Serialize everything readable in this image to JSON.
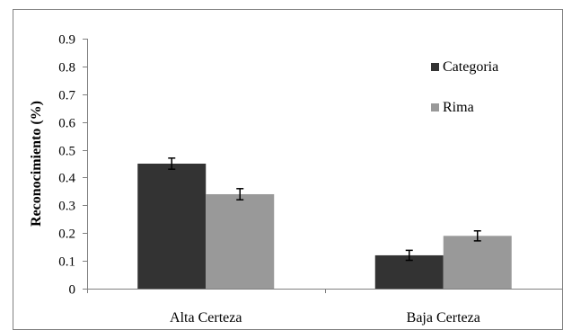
{
  "chart_data": {
    "type": "bar",
    "title": "",
    "xlabel": "",
    "ylabel": "Reconocimiento (%)",
    "ylim": [
      0,
      0.9
    ],
    "yticks": [
      0,
      0.1,
      0.2,
      0.3,
      0.4,
      0.5,
      0.6,
      0.7,
      0.8,
      0.9
    ],
    "ytick_labels": [
      "0",
      "0.1",
      "0.2",
      "0.3",
      "0.4",
      "0.5",
      "0.6",
      "0.7",
      "0.8",
      "0.9"
    ],
    "grid": false,
    "legend_position": "top-right",
    "categories": [
      "Alta Certeza",
      "Baja Certeza"
    ],
    "series": [
      {
        "name": "Categoria",
        "values": [
          0.45,
          0.12
        ],
        "errors": [
          0.02,
          0.018
        ],
        "color": "#333333"
      },
      {
        "name": "Rima",
        "values": [
          0.34,
          0.19
        ],
        "errors": [
          0.02,
          0.018
        ],
        "color": "#999999"
      }
    ]
  },
  "colors": {
    "axis": "#808080",
    "frame": "#808080"
  }
}
